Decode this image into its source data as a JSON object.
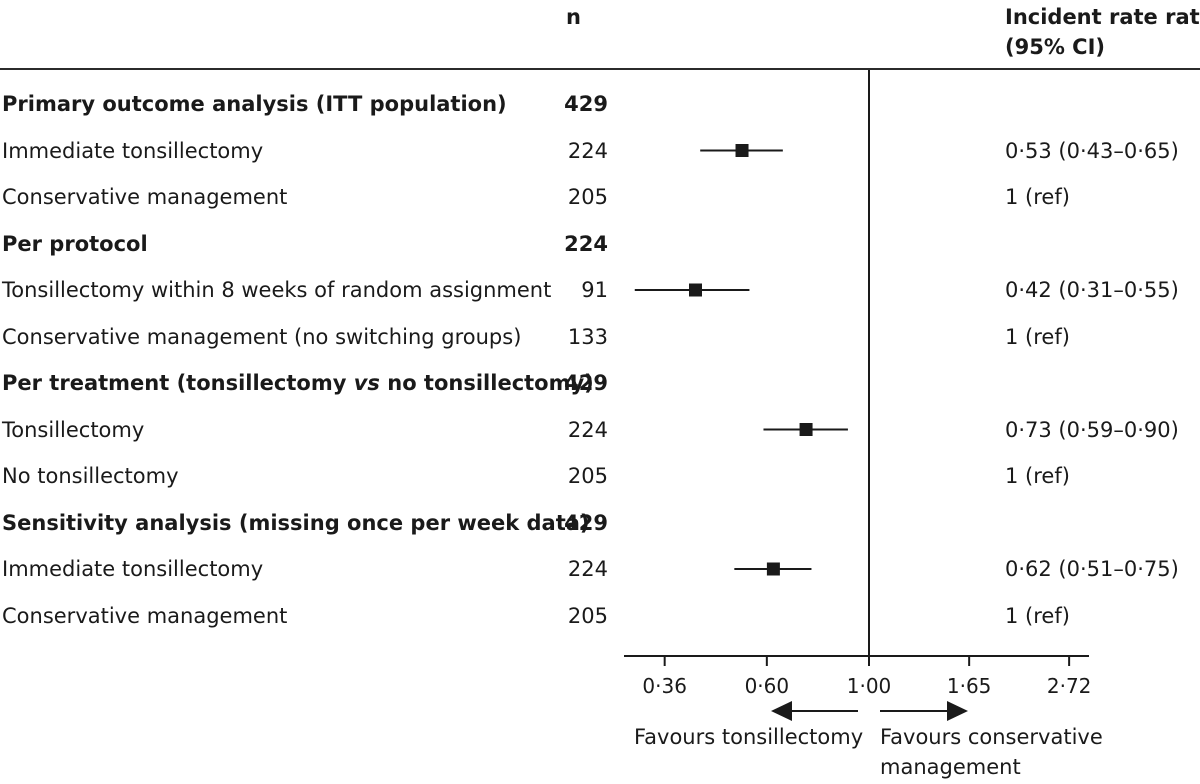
{
  "header": {
    "n_label": "n",
    "irr_label_line1": "Incident rate ratio",
    "irr_label_line2": "(95% CI)"
  },
  "rows": [
    {
      "label": "Primary outcome analysis (ITT population)",
      "n": "429",
      "irr": "",
      "bold": true
    },
    {
      "label": "Immediate tonsillectomy",
      "n": "224",
      "irr": "0·53 (0·43–0·65)",
      "bold": false
    },
    {
      "label": "Conservative management",
      "n": "205",
      "irr": "1 (ref)",
      "bold": false
    },
    {
      "label": "Per protocol",
      "n": "224",
      "irr": "",
      "bold": true
    },
    {
      "label": "Tonsillectomy within 8 weeks of random assignment",
      "n": "91",
      "irr": "0·42 (0·31–0·55)",
      "bold": false
    },
    {
      "label": "Conservative management (no switching groups)",
      "n": "133",
      "irr": "1 (ref)",
      "bold": false
    },
    {
      "label_parts": [
        "Per treatment (tonsillectomy ",
        "vs",
        " no tonsillectomy)"
      ],
      "n": "429",
      "irr": "",
      "bold": true
    },
    {
      "label": "Tonsillectomy",
      "n": "224",
      "irr": "0·73 (0·59–0·90)",
      "bold": false
    },
    {
      "label": "No tonsillectomy",
      "n": "205",
      "irr": "1 (ref)",
      "bold": false
    },
    {
      "label": "Sensitivity analysis (missing once per week data)",
      "n": "429",
      "irr": "",
      "bold": true
    },
    {
      "label": "Immediate tonsillectomy",
      "n": "224",
      "irr": "0·62 (0·51–0·75)",
      "bold": false
    },
    {
      "label": "Conservative management",
      "n": "205",
      "irr": "1 (ref)",
      "bold": false
    }
  ],
  "chart_data": {
    "type": "forest",
    "scale": "log",
    "reference_value": 1.0,
    "xlim": [
      0.32,
      3.0
    ],
    "ticks": [
      {
        "value": 0.36,
        "label": "0·36"
      },
      {
        "value": 0.6,
        "label": "0·60"
      },
      {
        "value": 1.0,
        "label": "1·00"
      },
      {
        "value": 1.65,
        "label": "1·65"
      },
      {
        "value": 2.72,
        "label": "2·72"
      }
    ],
    "estimates": [
      {
        "row": 1,
        "irr": 0.53,
        "lower": 0.43,
        "upper": 0.65
      },
      {
        "row": 4,
        "irr": 0.42,
        "lower": 0.31,
        "upper": 0.55
      },
      {
        "row": 7,
        "irr": 0.73,
        "lower": 0.59,
        "upper": 0.9
      },
      {
        "row": 10,
        "irr": 0.62,
        "lower": 0.51,
        "upper": 0.75
      }
    ],
    "favours_left": "Favours tonsillectomy",
    "favours_right_line1": "Favours conservative",
    "favours_right_line2": "management"
  }
}
